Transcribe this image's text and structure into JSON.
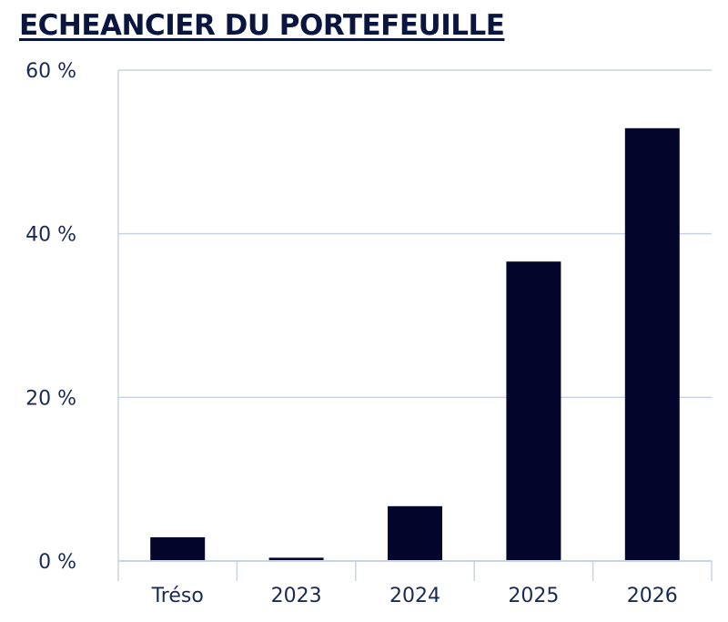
{
  "chart_data": {
    "type": "bar",
    "title": "ECHEANCIER DU PORTEFEUILLE",
    "categories": [
      "Tréso",
      "2023",
      "2024",
      "2025",
      "2026"
    ],
    "values": [
      2.9,
      0.4,
      6.7,
      36.6,
      52.9
    ],
    "ylim": [
      0,
      60
    ],
    "yticks": [
      0,
      20,
      40,
      60
    ],
    "ytick_labels": [
      "0 %",
      "20 %",
      "40 %",
      "60 %"
    ],
    "grid": true,
    "legend": "none",
    "colors": {
      "bar": "#03052a",
      "grid": "#c9d3e3",
      "title": "#0a1640",
      "text": "#1a2a52"
    }
  }
}
